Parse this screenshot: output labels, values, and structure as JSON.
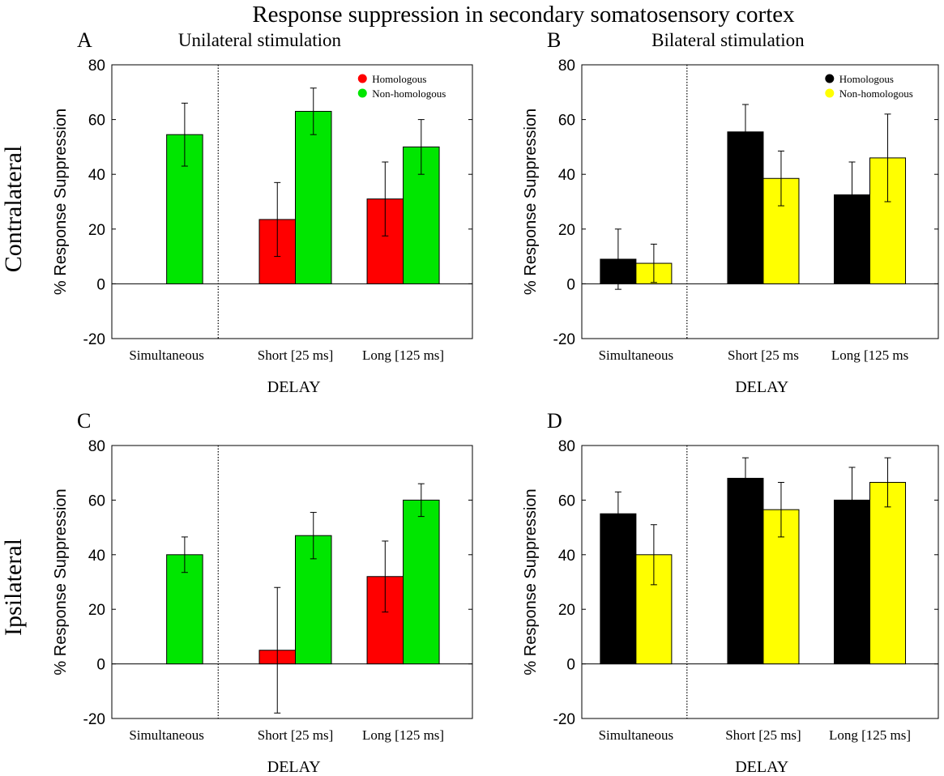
{
  "figure": {
    "title": "Response suppression in secondary somatosensory cortex",
    "row_labels": [
      "Contralateral",
      "Ipsilateral"
    ]
  },
  "chart_data": [
    {
      "type": "bar",
      "panel_letter": "A",
      "subtitle": "Unilateral stimulation",
      "xlabel": "DELAY",
      "ylabel": "% Response Suppression",
      "ylim": [
        -20,
        80
      ],
      "yticks": [
        -20,
        0,
        20,
        40,
        60,
        80
      ],
      "categories": [
        "Simultaneous",
        "Short [25 ms]",
        "Long [125 ms]"
      ],
      "legend_position": "top-right",
      "series": [
        {
          "name": "Homologous",
          "color": "#ff0000",
          "values": [
            null,
            23.5,
            31
          ],
          "errors": [
            null,
            13.5,
            13.5
          ]
        },
        {
          "name": "Non-homologous",
          "color": "#00e600",
          "values": [
            54.5,
            63,
            50
          ],
          "errors": [
            11.5,
            8.5,
            10
          ]
        }
      ]
    },
    {
      "type": "bar",
      "panel_letter": "B",
      "subtitle": "Bilateral stimulation",
      "xlabel": "DELAY",
      "ylabel": "% Response Suppression",
      "ylim": [
        -20,
        80
      ],
      "yticks": [
        -20,
        0,
        20,
        40,
        60,
        80
      ],
      "categories": [
        "Simultaneous",
        "Short [25 ms",
        "Long [125 ms"
      ],
      "legend_position": "top-right",
      "series": [
        {
          "name": "Homologous",
          "color": "#000000",
          "values": [
            9,
            55.5,
            32.5
          ],
          "errors": [
            11,
            10,
            12
          ]
        },
        {
          "name": "Non-homologous",
          "color": "#ffff00",
          "values": [
            7.5,
            38.5,
            46
          ],
          "errors": [
            7,
            10,
            16
          ]
        }
      ]
    },
    {
      "type": "bar",
      "panel_letter": "C",
      "subtitle": "",
      "xlabel": "DELAY",
      "ylabel": "% Response Suppression",
      "ylim": [
        -20,
        80
      ],
      "yticks": [
        -20,
        0,
        20,
        40,
        60,
        80
      ],
      "categories": [
        "Simultaneous",
        "Short [25 ms]",
        "Long [125 ms]"
      ],
      "series": [
        {
          "name": "Homologous",
          "color": "#ff0000",
          "values": [
            null,
            5,
            32
          ],
          "errors": [
            null,
            23,
            13
          ]
        },
        {
          "name": "Non-homologous",
          "color": "#00e600",
          "values": [
            40,
            47,
            60
          ],
          "errors": [
            6.5,
            8.5,
            6
          ]
        }
      ]
    },
    {
      "type": "bar",
      "panel_letter": "D",
      "subtitle": "",
      "xlabel": "DELAY",
      "ylabel": "% Response Suppression",
      "ylim": [
        -20,
        80
      ],
      "yticks": [
        -20,
        0,
        20,
        40,
        60,
        80
      ],
      "categories": [
        "Simultaneous",
        "Short [25 ms]",
        "Long [125 ms]"
      ],
      "series": [
        {
          "name": "Homologous",
          "color": "#000000",
          "values": [
            55,
            68,
            60
          ],
          "errors": [
            8,
            7.5,
            12
          ]
        },
        {
          "name": "Non-homologous",
          "color": "#ffff00",
          "values": [
            40,
            56.5,
            66.5
          ],
          "errors": [
            11,
            10,
            9
          ]
        }
      ]
    }
  ]
}
